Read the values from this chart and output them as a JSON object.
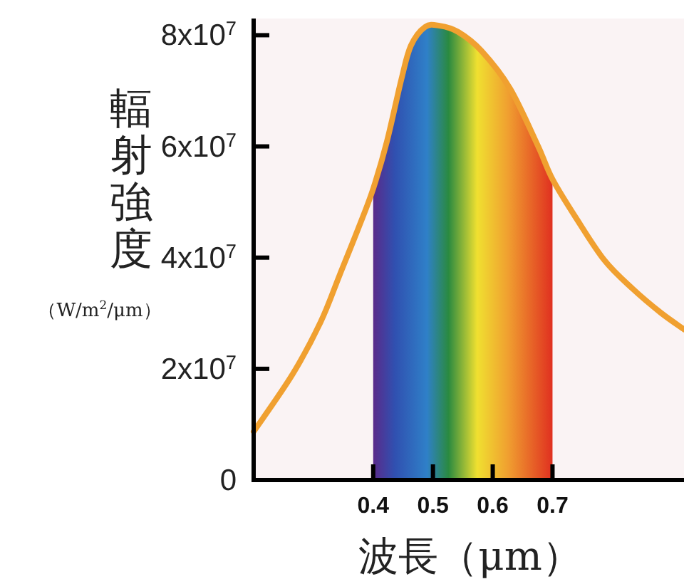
{
  "chart_data": {
    "type": "line",
    "xlabel": "波長（μm）",
    "ylabel": "輻射強度",
    "annotations": [
      "（W/m$^{2}$/μm）"
    ],
    "x": [
      0.2,
      0.265,
      0.312,
      0.344,
      0.376,
      0.4,
      0.423,
      0.447,
      0.463,
      0.487,
      0.511,
      0.542,
      0.581,
      0.629,
      0.676,
      0.7,
      0.739,
      0.787,
      0.834,
      0.881,
      0.92
    ],
    "series": [
      {
        "color": "#f0a030",
        "values": [
          8700000,
          19000000,
          28400000,
          36900000,
          45500000,
          52400000,
          60900000,
          72000000,
          78100000,
          81500000,
          81700000,
          80600000,
          77200000,
          70400000,
          60000000,
          54100000,
          47200000,
          39500000,
          34400000,
          30100000,
          27100000
        ]
      }
    ],
    "xlim": [
      0.2,
      0.92
    ],
    "xticks": [
      0.4,
      0.5,
      0.6,
      0.7
    ],
    "ylim": [
      0,
      83000000
    ],
    "yticks": [
      0,
      {
        "value": 20000000,
        "label": "2x10$^{7}$"
      },
      {
        "value": 40000000,
        "label": "4x10$^{7}$"
      },
      {
        "value": 60000000,
        "label": "6x10$^{7}$"
      },
      {
        "value": 80000000,
        "label": "8x10$^{7}$"
      }
    ],
    "bands": [
      {
        "axis": "x",
        "from": 0.4,
        "to": 0.7
      }
    ],
    "grid": false,
    "marker": "none",
    "line_style": "solid"
  }
}
